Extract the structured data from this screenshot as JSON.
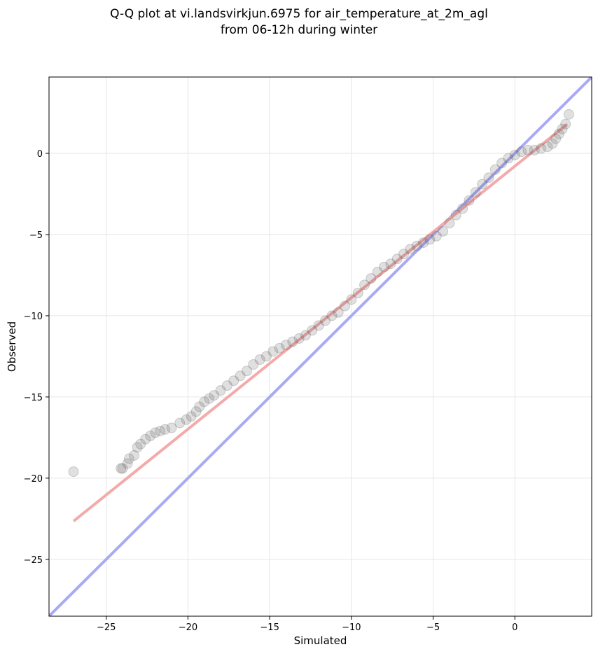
{
  "chart_data": {
    "type": "scatter",
    "title_line1": "Q-Q plot at vi.landsvirkjun.6975 for air_temperature_at_2m_agl",
    "title_line2": "from 06-12h during winter",
    "xlabel": "Simulated",
    "ylabel": "Observed",
    "xlim": [
      -28.5,
      4.7
    ],
    "ylim": [
      -28.5,
      4.7
    ],
    "xticks": [
      -25,
      -20,
      -15,
      -10,
      -5,
      0
    ],
    "yticks": [
      -25,
      -20,
      -15,
      -10,
      -5,
      0
    ],
    "xtick_labels": [
      "−25",
      "−20",
      "−15",
      "−10",
      "−5",
      "0"
    ],
    "ytick_labels": [
      "−25",
      "−20",
      "−15",
      "−10",
      "−5",
      "0"
    ],
    "grid": true,
    "identity_line": {
      "color": "#aaaaf4",
      "x": [
        -28.5,
        4.7
      ],
      "y": [
        -28.5,
        4.7
      ]
    },
    "fit_line": {
      "color": "#f4aaaa",
      "x": [
        -27.0,
        3.2
      ],
      "y": [
        -22.65,
        1.8
      ]
    },
    "points": {
      "color": "#555555",
      "x": [
        -27.0,
        -24.1,
        -24.0,
        -23.7,
        -23.6,
        -23.3,
        -23.1,
        -22.9,
        -22.6,
        -22.3,
        -22.0,
        -21.7,
        -21.4,
        -21.0,
        -20.5,
        -20.1,
        -19.8,
        -19.5,
        -19.3,
        -19.0,
        -18.7,
        -18.4,
        -18.0,
        -17.6,
        -17.2,
        -16.8,
        -16.4,
        -16.0,
        -15.6,
        -15.2,
        -14.8,
        -14.4,
        -14.0,
        -13.6,
        -13.2,
        -12.8,
        -12.4,
        -12.0,
        -11.6,
        -11.2,
        -10.8,
        -10.4,
        -10.0,
        -9.6,
        -9.2,
        -8.8,
        -8.4,
        -8.0,
        -7.6,
        -7.2,
        -6.8,
        -6.4,
        -6.0,
        -5.6,
        -5.2,
        -4.8,
        -4.4,
        -4.0,
        -3.6,
        -3.2,
        -2.8,
        -2.4,
        -2.0,
        -1.6,
        -1.2,
        -0.8,
        -0.4,
        0.0,
        0.4,
        0.8,
        1.2,
        1.6,
        2.0,
        2.3,
        2.5,
        2.7,
        2.9,
        3.1,
        3.3
      ],
      "y": [
        -19.6,
        -19.4,
        -19.4,
        -19.1,
        -18.8,
        -18.6,
        -18.1,
        -17.9,
        -17.6,
        -17.4,
        -17.2,
        -17.1,
        -17.0,
        -16.9,
        -16.6,
        -16.4,
        -16.2,
        -15.9,
        -15.6,
        -15.3,
        -15.1,
        -14.9,
        -14.6,
        -14.3,
        -14.0,
        -13.7,
        -13.4,
        -13.0,
        -12.7,
        -12.5,
        -12.2,
        -12.0,
        -11.8,
        -11.6,
        -11.4,
        -11.2,
        -10.9,
        -10.6,
        -10.3,
        -10.0,
        -9.8,
        -9.4,
        -9.0,
        -8.6,
        -8.1,
        -7.7,
        -7.3,
        -7.0,
        -6.8,
        -6.5,
        -6.2,
        -5.9,
        -5.7,
        -5.5,
        -5.3,
        -5.1,
        -4.8,
        -4.3,
        -3.8,
        -3.4,
        -2.9,
        -2.4,
        -1.9,
        -1.5,
        -1.0,
        -0.6,
        -0.3,
        -0.1,
        0.1,
        0.2,
        0.2,
        0.3,
        0.4,
        0.6,
        0.9,
        1.2,
        1.5,
        1.8,
        2.4
      ]
    }
  }
}
